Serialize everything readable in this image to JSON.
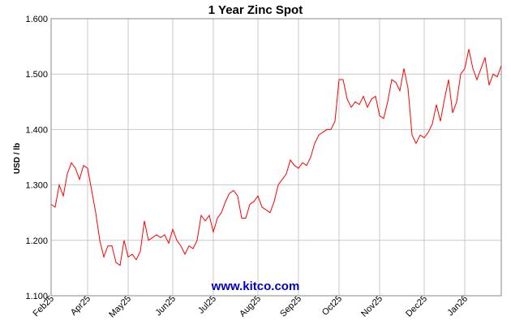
{
  "chart_data": {
    "type": "line",
    "title": "1 Year Zinc Spot",
    "y_label": "USD / lb",
    "watermark": "www.kitco.com",
    "categories": [
      "Feb25",
      null,
      null,
      null,
      null,
      null,
      null,
      null,
      null,
      "Apr25",
      null,
      null,
      null,
      null,
      null,
      null,
      null,
      null,
      null,
      "May25",
      null,
      null,
      null,
      null,
      null,
      null,
      null,
      null,
      null,
      null,
      "Jun25",
      null,
      null,
      null,
      null,
      null,
      null,
      null,
      null,
      null,
      "Jul25",
      null,
      null,
      null,
      null,
      null,
      null,
      null,
      null,
      null,
      null,
      "Aug25",
      null,
      null,
      null,
      null,
      null,
      null,
      null,
      null,
      null,
      "Sep25",
      null,
      null,
      null,
      null,
      null,
      null,
      null,
      null,
      null,
      "Oct25",
      null,
      null,
      null,
      null,
      null,
      null,
      null,
      null,
      null,
      "Nov25",
      null,
      null,
      null,
      null,
      null,
      null,
      null,
      null,
      null,
      null,
      "Dec25",
      null,
      null,
      null,
      null,
      null,
      null,
      null,
      null,
      null,
      "Jan26",
      null,
      null,
      null,
      null,
      null,
      null,
      null,
      null,
      null
    ],
    "values": [
      1.265,
      1.26,
      1.3,
      1.28,
      1.32,
      1.34,
      1.33,
      1.31,
      1.335,
      1.33,
      1.29,
      1.25,
      1.2,
      1.17,
      1.19,
      1.19,
      1.16,
      1.155,
      1.2,
      1.17,
      1.175,
      1.165,
      1.18,
      1.235,
      1.2,
      1.205,
      1.21,
      1.205,
      1.21,
      1.195,
      1.22,
      1.2,
      1.19,
      1.175,
      1.19,
      1.185,
      1.2,
      1.245,
      1.235,
      1.245,
      1.215,
      1.24,
      1.25,
      1.27,
      1.285,
      1.29,
      1.28,
      1.24,
      1.24,
      1.265,
      1.27,
      1.28,
      1.26,
      1.255,
      1.25,
      1.27,
      1.3,
      1.31,
      1.32,
      1.345,
      1.335,
      1.33,
      1.34,
      1.335,
      1.35,
      1.375,
      1.39,
      1.395,
      1.4,
      1.4,
      1.415,
      1.49,
      1.49,
      1.455,
      1.44,
      1.45,
      1.445,
      1.46,
      1.44,
      1.455,
      1.46,
      1.425,
      1.42,
      1.45,
      1.49,
      1.485,
      1.47,
      1.51,
      1.475,
      1.39,
      1.375,
      1.39,
      1.385,
      1.395,
      1.41,
      1.445,
      1.415,
      1.455,
      1.49,
      1.43,
      1.45,
      1.5,
      1.51,
      1.545,
      1.51,
      1.49,
      1.51,
      1.53,
      1.48,
      1.5,
      1.495,
      1.515
    ],
    "color": "#ff0000",
    "ylim": [
      1.1,
      1.6
    ],
    "yticks": [
      {
        "value": 1.1,
        "label": "1.100"
      },
      {
        "value": 1.2,
        "label": "1.200"
      },
      {
        "value": 1.3,
        "label": "1.300"
      },
      {
        "value": 1.4,
        "label": "1.400"
      },
      {
        "value": 1.5,
        "label": "1.500"
      },
      {
        "value": 1.6,
        "label": "1.600"
      }
    ],
    "grid": true
  }
}
